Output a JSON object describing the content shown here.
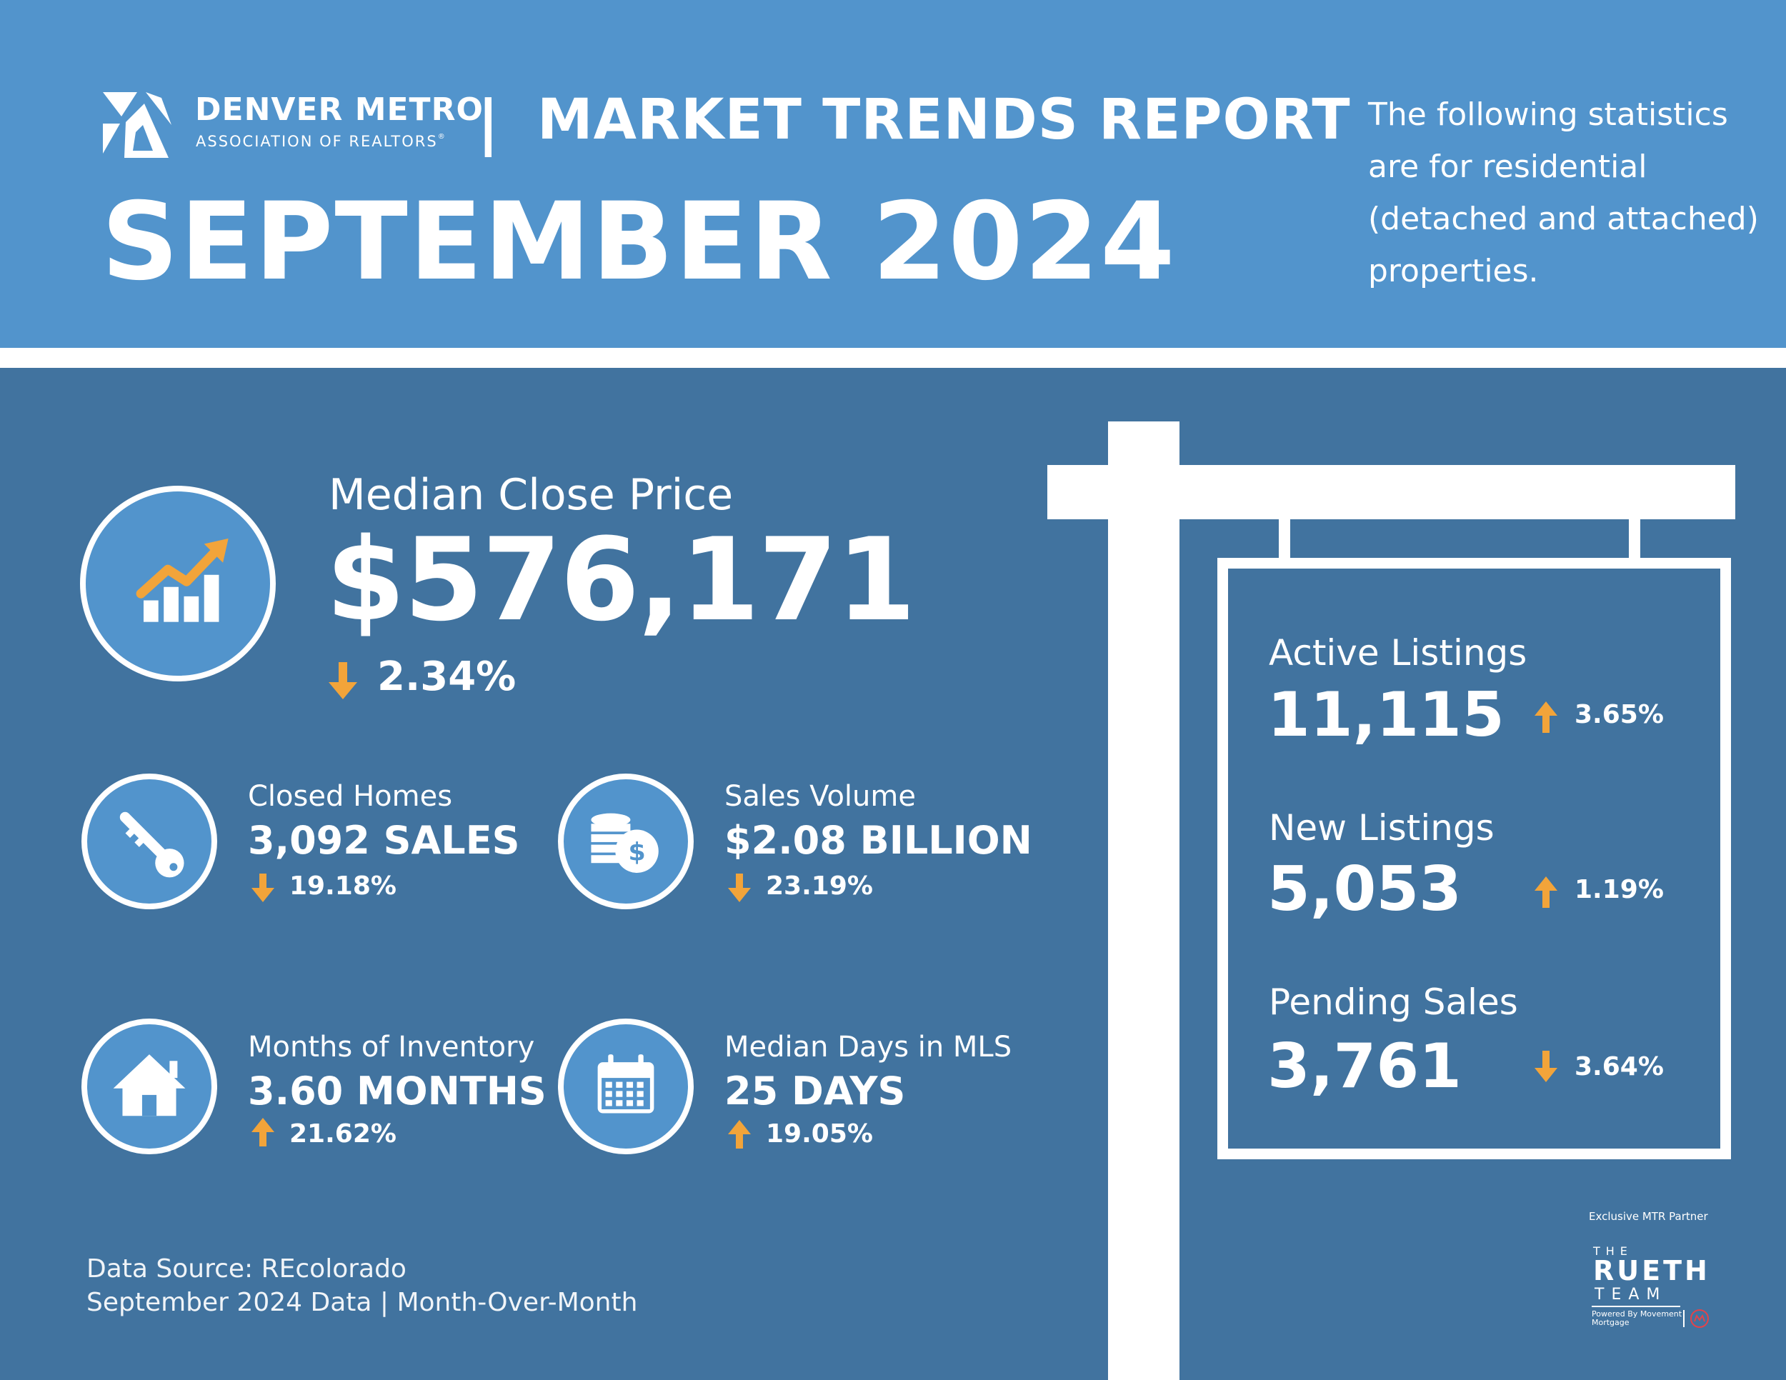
{
  "header": {
    "logo": {
      "name": "DENVER METRO",
      "subtitle": "ASSOCIATION OF REALTORS",
      "reg_mark": "®"
    },
    "divider": "|",
    "report_title": "MARKET TRENDS REPORT",
    "month": "SEPTEMBER 2024",
    "note": "The following statistics are for residential (detached and attached) properties."
  },
  "median_close_price": {
    "label": "Median Close Price",
    "value": "$576,171",
    "change": "2.34%",
    "direction": "down",
    "icon": "rising-bar-chart-icon"
  },
  "closed_homes": {
    "label": "Closed Homes",
    "value": "3,092 SALES",
    "change": "19.18%",
    "direction": "down",
    "icon": "key-icon"
  },
  "sales_volume": {
    "label": "Sales Volume",
    "value": "$2.08 BILLION",
    "change": "23.19%",
    "direction": "down",
    "icon": "coins-icon"
  },
  "months_of_inventory": {
    "label": "Months of Inventory",
    "value": "3.60 MONTHS",
    "change": "21.62%",
    "direction": "up",
    "icon": "house-icon"
  },
  "median_days_in_mls": {
    "label": "Median Days in MLS",
    "value": "25 DAYS",
    "change": "19.05%",
    "direction": "up",
    "icon": "calendar-icon"
  },
  "sign": {
    "active_listings": {
      "label": "Active Listings",
      "value": "11,115",
      "change": "3.65%",
      "direction": "up"
    },
    "new_listings": {
      "label": "New Listings",
      "value": "5,053",
      "change": "1.19%",
      "direction": "up"
    },
    "pending_sales": {
      "label": "Pending Sales",
      "value": "3,761",
      "change": "3.64%",
      "direction": "down"
    }
  },
  "footer": {
    "source": "Data Source: REcolorado",
    "period": "September 2024 Data | Month-Over-Month"
  },
  "partner": {
    "label": "Exclusive MTR Partner",
    "the": "THE",
    "name": "RUETH",
    "team": "TEAM",
    "powered_by": "Powered By Movement Mortgage"
  },
  "colors": {
    "header_blue": "#5294cc",
    "panel_blue": "#41739f",
    "accent_orange": "#f2a43a",
    "white": "#ffffff"
  }
}
